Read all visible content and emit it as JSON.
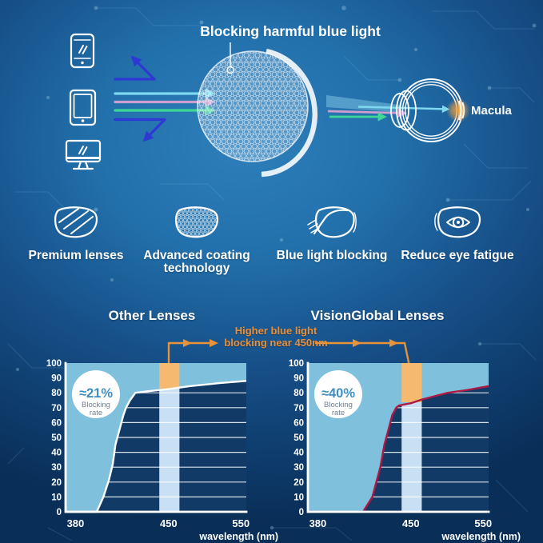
{
  "colors": {
    "background_center": "#2e7fba",
    "background_edge": "#092e57",
    "text_white": "#ffffff",
    "accent_orange": "#ec8f35",
    "connector_orange": "#e8923a",
    "band_orange": "#f6b970",
    "band_pale": "#c9dff3",
    "area_fill": "#7fc1dd",
    "plot_bg": "#123a66",
    "grid_line": "#ffffff",
    "curve_left": "#ffffff",
    "curve_right": "#ad1845",
    "arrow_blue": "#3038d4",
    "ray_cyan": "#7fd9ee",
    "ray_pink": "#cf9ed0",
    "ray_green": "#3fd795",
    "badge_bg": "#ffffff",
    "badge_value": "#3e8fc2",
    "badge_label": "#707f92",
    "macula_glow": "#f5a23c"
  },
  "hero": {
    "lens_callout": "Blocking harmful blue light",
    "macula_label": "Macula",
    "devices": [
      "phone-icon",
      "tablet-icon",
      "monitor-icon"
    ]
  },
  "features": [
    {
      "icon": "premium-lens-icon",
      "label": "Premium lenses"
    },
    {
      "icon": "coating-lens-icon",
      "label": "Advanced coating technology"
    },
    {
      "icon": "blue-light-blocking-lens-icon",
      "label": "Blue light blocking"
    },
    {
      "icon": "eye-lens-icon",
      "label": "Reduce eye fatigue"
    }
  ],
  "comparison": {
    "annotation": "Higher blue light blocking near 450nm"
  },
  "chart_data": [
    {
      "type": "area",
      "title": "Other Lenses",
      "xlabel": "wavelength (nm)",
      "ylabel": "",
      "x_ticks": [
        380,
        450,
        550
      ],
      "y_ticks": [
        0,
        10,
        20,
        30,
        40,
        50,
        60,
        70,
        80,
        90,
        100
      ],
      "ylim": [
        0,
        100
      ],
      "grid": true,
      "badge": {
        "value": "≈21%",
        "label": "Blocking rate"
      },
      "highlight_band_nm": [
        443,
        465
      ],
      "curve_color": "#ffffff",
      "series": [
        {
          "name": "Other lenses blocking rate (%)",
          "points": [
            [
              380,
              0
            ],
            [
              396,
              0
            ],
            [
              401,
              10
            ],
            [
              405,
              21
            ],
            [
              408,
              32
            ],
            [
              410,
              45
            ],
            [
              413,
              55
            ],
            [
              416,
              65
            ],
            [
              418,
              70
            ],
            [
              421,
              75
            ],
            [
              425,
              80
            ],
            [
              434,
              81
            ],
            [
              450,
              82.5
            ],
            [
              480,
              84.5
            ],
            [
              520,
              86.5
            ],
            [
              558,
              88
            ]
          ]
        }
      ]
    },
    {
      "type": "area",
      "title": "VisionGlobal Lenses",
      "xlabel": "wavelength (nm)",
      "ylabel": "",
      "x_ticks": [
        380,
        450,
        550
      ],
      "y_ticks": [
        0,
        10,
        20,
        30,
        40,
        50,
        60,
        70,
        80,
        90,
        100
      ],
      "ylim": [
        0,
        100
      ],
      "grid": true,
      "badge": {
        "value": "≈40%",
        "label": "Blocking rate"
      },
      "highlight_band_nm": [
        443,
        465
      ],
      "curve_color": "#ad1845",
      "series": [
        {
          "name": "VisionGlobal lenses blocking rate (%)",
          "points": [
            [
              380,
              0
            ],
            [
              414,
              0
            ],
            [
              421,
              10
            ],
            [
              424,
              20
            ],
            [
              427,
              30
            ],
            [
              430,
              45
            ],
            [
              433,
              55
            ],
            [
              436,
              65
            ],
            [
              439,
              70
            ],
            [
              441,
              71.5
            ],
            [
              450,
              73
            ],
            [
              465,
              75.5
            ],
            [
              485,
              78
            ],
            [
              501,
              80
            ],
            [
              529,
              82
            ],
            [
              558,
              84.5
            ]
          ]
        }
      ]
    }
  ]
}
